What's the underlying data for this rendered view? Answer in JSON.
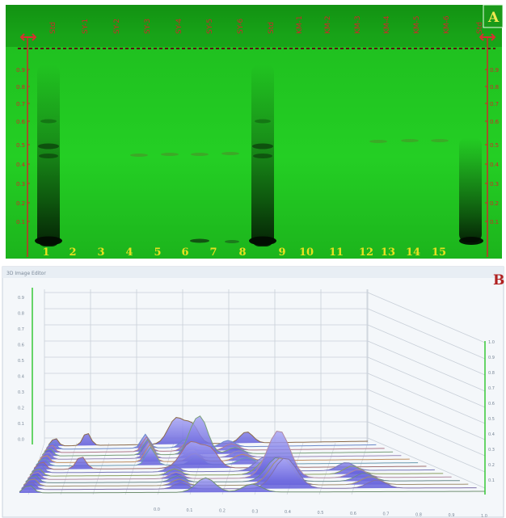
{
  "panel_a": {
    "label": "A",
    "track_labels": [
      "Std",
      "SY-1",
      "SY-2",
      "SY-3",
      "SY-4",
      "SY-5",
      "SY-6",
      "Std",
      "KM-1",
      "KM-2",
      "KM-3",
      "KM-4",
      "KM-5",
      "KM-6",
      "Std"
    ],
    "lane_numbers": [
      "1",
      "2",
      "3",
      "4",
      "5",
      "6",
      "7",
      "8",
      "9",
      "10",
      "11",
      "12",
      "13",
      "14",
      "15"
    ],
    "rf_ticks": [
      "0.9",
      "0.8",
      "0.7",
      "0.6",
      "0.5",
      "0.4",
      "0.3",
      "0.2",
      "0.1"
    ],
    "colors": {
      "plate": "#22cc22",
      "label": "#e8e020",
      "marker": "#cc2a2a"
    }
  },
  "panel_b": {
    "label": "B",
    "window_title": "3D Image Editor",
    "left_axis_ticks": [
      "0.9",
      "0.8",
      "0.7",
      "0.6",
      "0.5",
      "0.4",
      "0.3",
      "0.2",
      "0.1",
      "0.0"
    ],
    "right_axis_ticks": [
      "1.0",
      "0.9",
      "0.8",
      "0.7",
      "0.6",
      "0.5",
      "0.4",
      "0.3",
      "0.2",
      "0.1"
    ],
    "bottom_axis_ticks": [
      "0.0",
      "0.1",
      "0.2",
      "0.3",
      "0.4",
      "0.5",
      "0.6",
      "0.7",
      "0.8",
      "0.9",
      "1.0"
    ],
    "colors": {
      "peak": "#7b78e6",
      "axis": "#37c837",
      "grid": "#c8cfd8"
    }
  }
}
